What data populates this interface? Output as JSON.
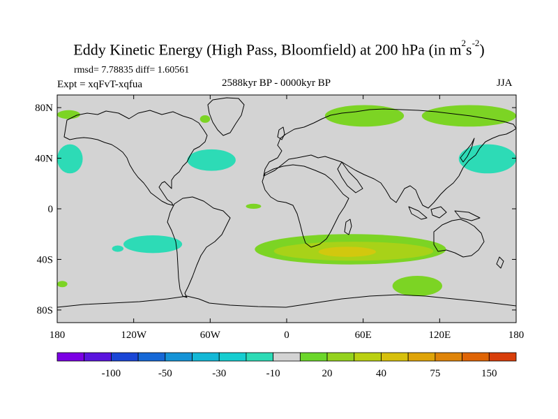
{
  "title": {
    "text": "Eddy Kinetic Energy (High Pass, Bloomfield) at 200 hPa (in m",
    "sup1": "2",
    "mid": "s",
    "sup2": "-2",
    "close": ")"
  },
  "stats": "rmsd= 7.78835 diff= 1.60561",
  "experiment": "Expt = xqFvT-xqfua",
  "period": "2588kyr BP - 0000kyr BP",
  "season": "JJA",
  "map": {
    "projection": "cylindrical-equidistant",
    "lon_range": [
      -180,
      180
    ],
    "lat_range": [
      -90,
      90
    ],
    "land_color": "#d3d3d3",
    "coast_color": "#000000",
    "x_ticks": [
      {
        "lon": -180,
        "label": "180"
      },
      {
        "lon": -120,
        "label": "120W"
      },
      {
        "lon": -60,
        "label": "60W"
      },
      {
        "lon": 0,
        "label": "0"
      },
      {
        "lon": 60,
        "label": "60E"
      },
      {
        "lon": 120,
        "label": "120E"
      },
      {
        "lon": 180,
        "label": "180"
      }
    ],
    "y_ticks": [
      {
        "lat": 80,
        "label": "80N"
      },
      {
        "lat": 40,
        "label": "40N"
      },
      {
        "lat": 0,
        "label": "0"
      },
      {
        "lat": -40,
        "label": "40S"
      },
      {
        "lat": -80,
        "label": "80S"
      }
    ],
    "anomaly_regions": [
      {
        "name": "north-pacific-east",
        "lon": [
          -180,
          -162
        ],
        "lat": [
          71,
          78
        ],
        "level": 20
      },
      {
        "name": "north-atlantic-high-lat",
        "lon": [
          -68,
          -60
        ],
        "lat": [
          68,
          74
        ],
        "level": 20
      },
      {
        "name": "siberia",
        "lon": [
          30,
          92
        ],
        "lat": [
          65,
          82
        ],
        "level": 20
      },
      {
        "name": "north-pacific-west",
        "lon": [
          106,
          180
        ],
        "lat": [
          65,
          82
        ],
        "level": 20
      },
      {
        "name": "north-pacific-west-edge",
        "lon": [
          -180,
          -160
        ],
        "lat": [
          28,
          51
        ],
        "level": -10
      },
      {
        "name": "north-atlantic-west",
        "lon": [
          -78,
          -40
        ],
        "lat": [
          30,
          47
        ],
        "level": -10
      },
      {
        "name": "north-pacific-jet",
        "lon": [
          135,
          180
        ],
        "lat": [
          28,
          51
        ],
        "level": -10
      },
      {
        "name": "equatorial-atlantic",
        "lon": [
          -32,
          -20
        ],
        "lat": [
          0,
          4
        ],
        "level": 20
      },
      {
        "name": "south-pacific-subtropic",
        "lon": [
          -128,
          -82
        ],
        "lat": [
          -21,
          -35
        ],
        "level": -10
      },
      {
        "name": "south-pacific-small",
        "lon": [
          -137,
          -128
        ],
        "lat": [
          -29,
          -34
        ],
        "level": -10
      },
      {
        "name": "southern-indian-ocean",
        "lon": [
          -25,
          125
        ],
        "lat": [
          -20,
          -44
        ],
        "level": 20
      },
      {
        "name": "indian-ocean-core",
        "lon": [
          -10,
          115
        ],
        "lat": [
          -26,
          -41
        ],
        "level": 30
      },
      {
        "name": "indian-ocean-peak",
        "lon": [
          25,
          70
        ],
        "lat": [
          -30,
          -38
        ],
        "level": 40
      },
      {
        "name": "southern-ocean-australia",
        "lon": [
          83,
          122
        ],
        "lat": [
          -53,
          -69
        ],
        "level": 20
      },
      {
        "name": "southern-atlantic-edge",
        "lon": [
          -180,
          -172
        ],
        "lat": [
          -57,
          -62
        ],
        "level": 20
      }
    ]
  },
  "colorbar": {
    "colors": [
      "#7b00e4",
      "#5a14de",
      "#1a46d6",
      "#1668d6",
      "#1593d6",
      "#13b8d6",
      "#16cdd0",
      "#2ddbb6",
      "#d3d3d3",
      "#6bd62a",
      "#94d21e",
      "#bad012",
      "#d7c00c",
      "#dfa409",
      "#df8409",
      "#df6405",
      "#d83e0a"
    ],
    "labels": [
      {
        "index": 2,
        "text": "-100"
      },
      {
        "index": 4,
        "text": "-50"
      },
      {
        "index": 6,
        "text": "-30"
      },
      {
        "index": 8,
        "text": "-10"
      },
      {
        "index": 10,
        "text": "20"
      },
      {
        "index": 12,
        "text": "40"
      },
      {
        "index": 14,
        "text": "75"
      },
      {
        "index": 16,
        "text": "150"
      }
    ]
  }
}
